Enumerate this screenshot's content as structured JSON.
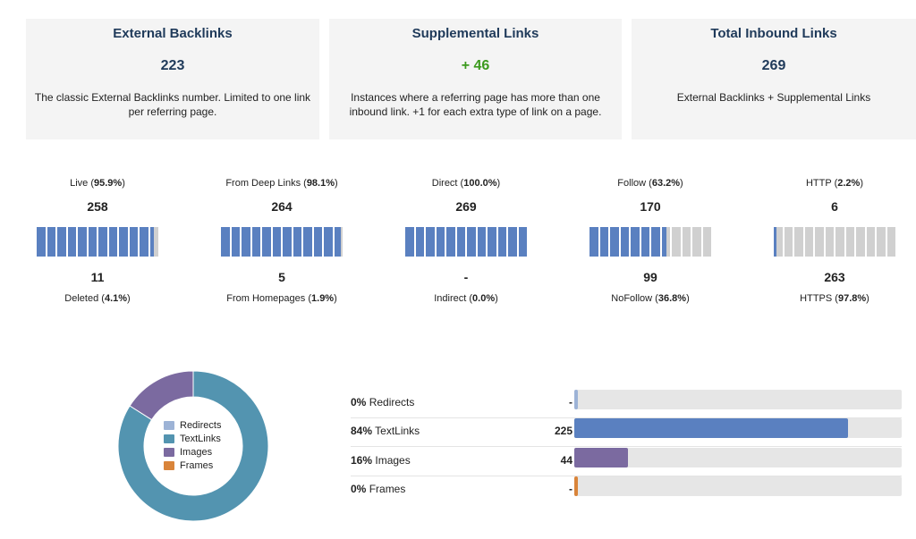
{
  "cards": [
    {
      "title": "External Backlinks",
      "value": "223",
      "desc": "The classic External Backlinks number. Limited to one link per referring page.",
      "accent": "#1f3a5a"
    },
    {
      "title": "Supplemental Links",
      "value": "+ 46",
      "desc": "Instances where a referring page has more than one inbound link. +1 for each extra type of link on a page.",
      "accent": "#3c9a1e"
    },
    {
      "title": "Total Inbound Links",
      "value": "269",
      "desc": "External Backlinks + Supplemental Links",
      "accent": "#1f3a5a"
    }
  ],
  "metrics": [
    {
      "top_label": "Live",
      "top_pct": "95.9%",
      "top_value": "258",
      "bottom_value": "11",
      "bottom_label": "Deleted",
      "bottom_pct": "4.1%",
      "fill_fraction": 0.959
    },
    {
      "top_label": "From Deep Links",
      "top_pct": "98.1%",
      "top_value": "264",
      "bottom_value": "5",
      "bottom_label": "From Homepages",
      "bottom_pct": "1.9%",
      "fill_fraction": 0.981
    },
    {
      "top_label": "Direct",
      "top_pct": "100.0%",
      "top_value": "269",
      "bottom_value": "-",
      "bottom_label": "Indirect",
      "bottom_pct": "0.0%",
      "fill_fraction": 1.0
    },
    {
      "top_label": "Follow",
      "top_pct": "63.2%",
      "top_value": "170",
      "bottom_value": "99",
      "bottom_label": "NoFollow",
      "bottom_pct": "36.8%",
      "fill_fraction": 0.632
    },
    {
      "top_label": "HTTP",
      "top_pct": "2.2%",
      "top_value": "6",
      "bottom_value": "263",
      "bottom_label": "HTTPS",
      "bottom_pct": "97.8%",
      "fill_fraction": 0.022
    }
  ],
  "link_types": [
    {
      "pct": "0%",
      "name": "Redirects",
      "count": "-",
      "fraction": 0.0,
      "color": "#9db3d6"
    },
    {
      "pct": "84%",
      "name": "TextLinks",
      "count": "225",
      "fraction": 0.836,
      "color": "#5a80c0"
    },
    {
      "pct": "16%",
      "name": "Images",
      "count": "44",
      "fraction": 0.164,
      "color": "#7b6aa0"
    },
    {
      "pct": "0%",
      "name": "Frames",
      "count": "-",
      "fraction": 0.0,
      "color": "#d9843a"
    }
  ],
  "donut": {
    "legend": [
      "Redirects",
      "TextLinks",
      "Images",
      "Frames"
    ],
    "colors": [
      "#9db3d6",
      "#5394b0",
      "#7b6aa0",
      "#d9843a"
    ],
    "values": [
      0,
      84,
      16,
      0
    ]
  }
}
